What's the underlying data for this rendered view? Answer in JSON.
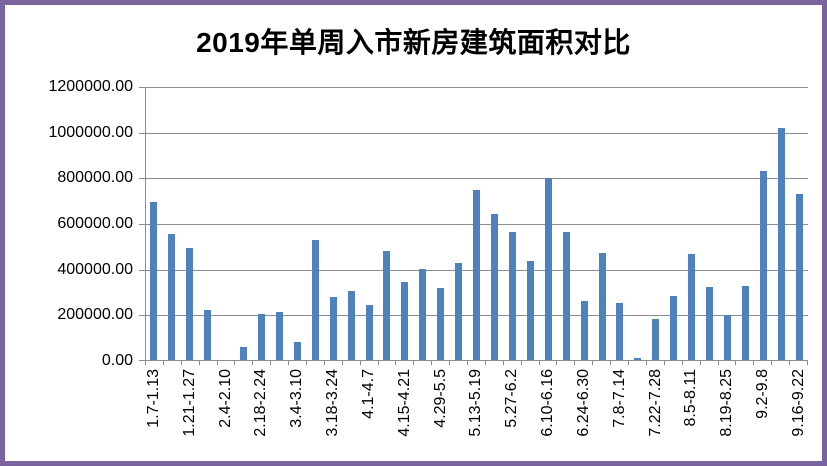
{
  "chart_data": {
    "type": "bar",
    "title": "2019年单周入市新房建筑面积对比",
    "ylim": [
      0,
      1200000
    ],
    "y_tick_step": 200000,
    "y_tick_labels": [
      "1200000.00",
      "1000000.00",
      "800000.00",
      "600000.00",
      "400000.00",
      "200000.00",
      "0.00"
    ],
    "x_tick_labels": [
      "1.7-1.13",
      "1.21-1.27",
      "2.4-2.10",
      "2.18-2.24",
      "3.4-3.10",
      "3.18-3.24",
      "4.1-4.7",
      "4.15-4.21",
      "4.29-5.5",
      "5.13-5.19",
      "5.27-6.2",
      "6.10-6.16",
      "6.24-6.30",
      "7.8-7.14",
      "7.22-7.28",
      "8.5-8.11",
      "8.19-8.25",
      "9.2-9.8",
      "9.16-9.22"
    ],
    "x_label_every": 2,
    "values": [
      695000,
      555000,
      495000,
      225000,
      0,
      60000,
      205000,
      215000,
      85000,
      530000,
      280000,
      305000,
      245000,
      480000,
      345000,
      405000,
      320000,
      430000,
      750000,
      645000,
      567000,
      440000,
      800000,
      565000,
      262000,
      475000,
      255000,
      12000,
      185000,
      285000,
      470000,
      323000,
      200000,
      328000,
      830000,
      1020000,
      730000
    ],
    "grid": true,
    "legend": false,
    "bar_color": "#4F81BD",
    "gridline_color": "#8C8C8C",
    "frame_border_color": "#7B639E"
  }
}
